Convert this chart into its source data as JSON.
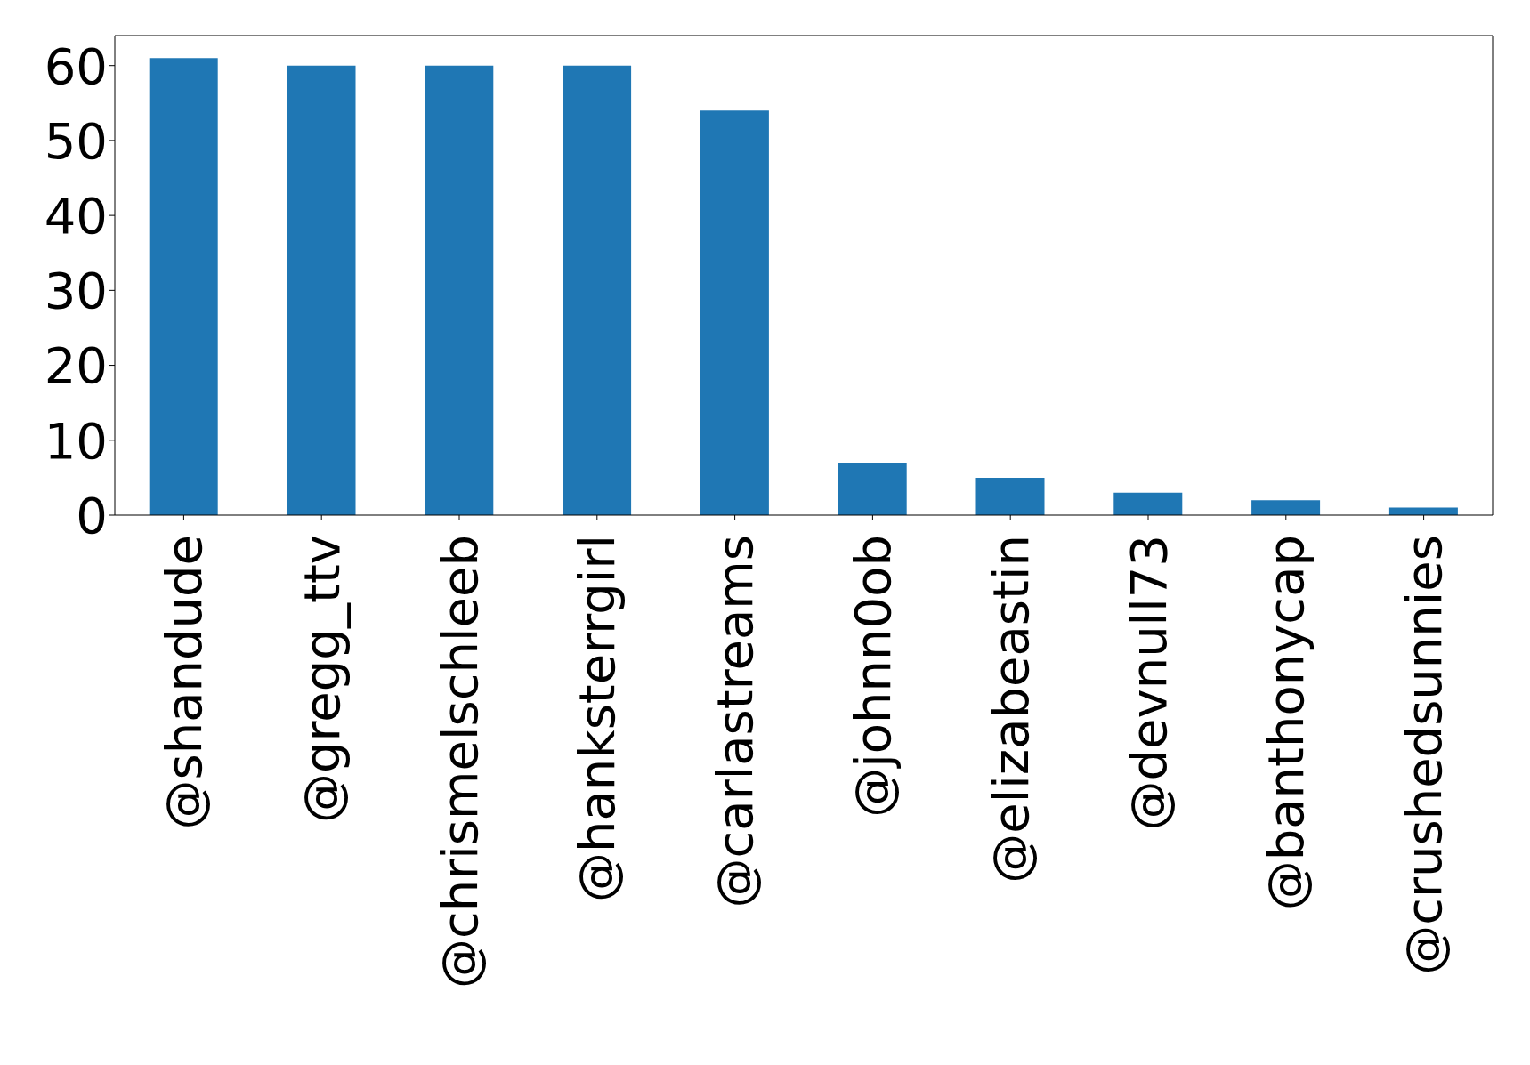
{
  "chart_data": {
    "type": "bar",
    "categories": [
      "@shandude",
      "@gregg_ttv",
      "@chrismelschleeb",
      "@hanksterrgirl",
      "@carlastreams",
      "@johnn0ob",
      "@elizabeastin",
      "@devnull73",
      "@banthonycap",
      "@crushedsunnies"
    ],
    "values": [
      61,
      60,
      60,
      60,
      54,
      7,
      5,
      3,
      2,
      1
    ],
    "color": "#1f77b4",
    "ylim": [
      0,
      64
    ],
    "yticks": [
      0,
      10,
      20,
      30,
      40,
      50,
      60
    ],
    "grid": false
  }
}
